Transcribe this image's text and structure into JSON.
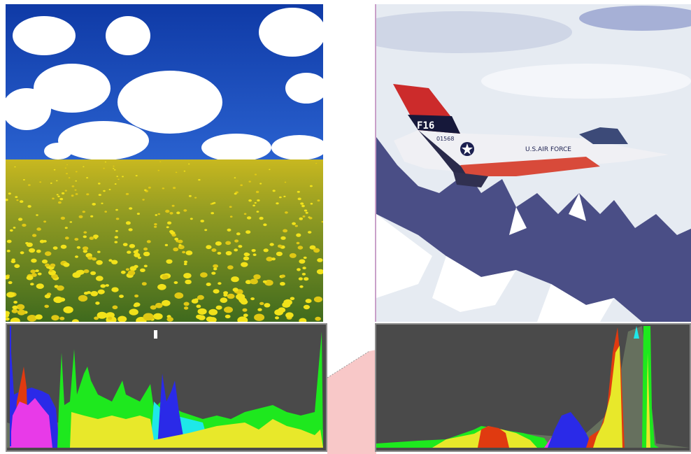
{
  "images": {
    "left_photo": {
      "icon": "dandelion-field-under-cloudy-sky"
    },
    "right_photo": {
      "icon": "f16-jet-over-snowy-mountains",
      "tail_text": "F16",
      "serial_text": "01568",
      "fuselage_text": "U.S.AIR FORCE"
    }
  },
  "histograms": {
    "left": {
      "icon": "rgb-histogram",
      "background": "#4a4a4a"
    },
    "right": {
      "icon": "rgb-histogram",
      "background": "#4a4a4a"
    }
  },
  "colors": {
    "sky": "#1b45b5",
    "grass": "#5a7a20",
    "flower": "#f2e21a",
    "hist_red": "#e03a10",
    "hist_green": "#1ee81e",
    "hist_blue": "#2a2ae8",
    "hist_yellow": "#e8e82a",
    "hist_cyan": "#1ee8e8",
    "hist_magenta": "#e83ae8",
    "hist_gray": "#66705e",
    "pink": "#f8c8c8"
  }
}
